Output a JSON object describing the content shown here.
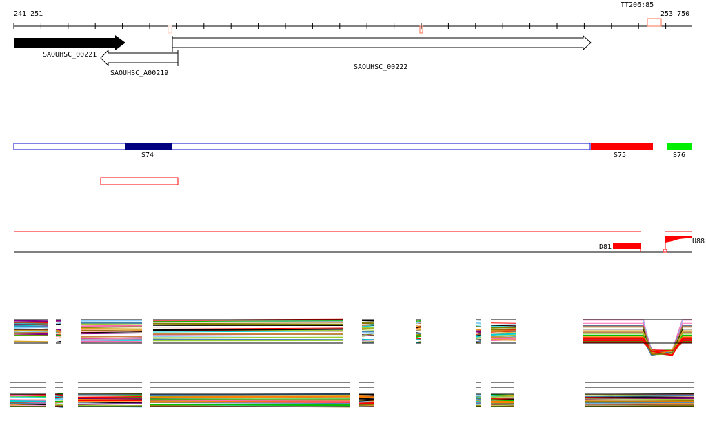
{
  "ruler": {
    "start": "241 251",
    "end": "253 750",
    "marker": "TT206:85"
  },
  "genes": [
    {
      "name": "SAOUHSC_00221",
      "strand": "+",
      "filled": true
    },
    {
      "name": "SAOUHSC_A00219",
      "strand": "-",
      "filled": false
    },
    {
      "name": "SAOUHSC_00222",
      "strand": "+",
      "filled": false
    }
  ],
  "segments": [
    {
      "name": "S74",
      "color": "#000080"
    },
    {
      "name": "S75",
      "color": "#ff0000"
    },
    {
      "name": "S76",
      "color": "#00ee00"
    }
  ],
  "features": {
    "down_label": "D81",
    "up_label": "U88",
    "accent": "#ff0000"
  },
  "colors": {
    "ruler_marker": "#ff7050"
  }
}
